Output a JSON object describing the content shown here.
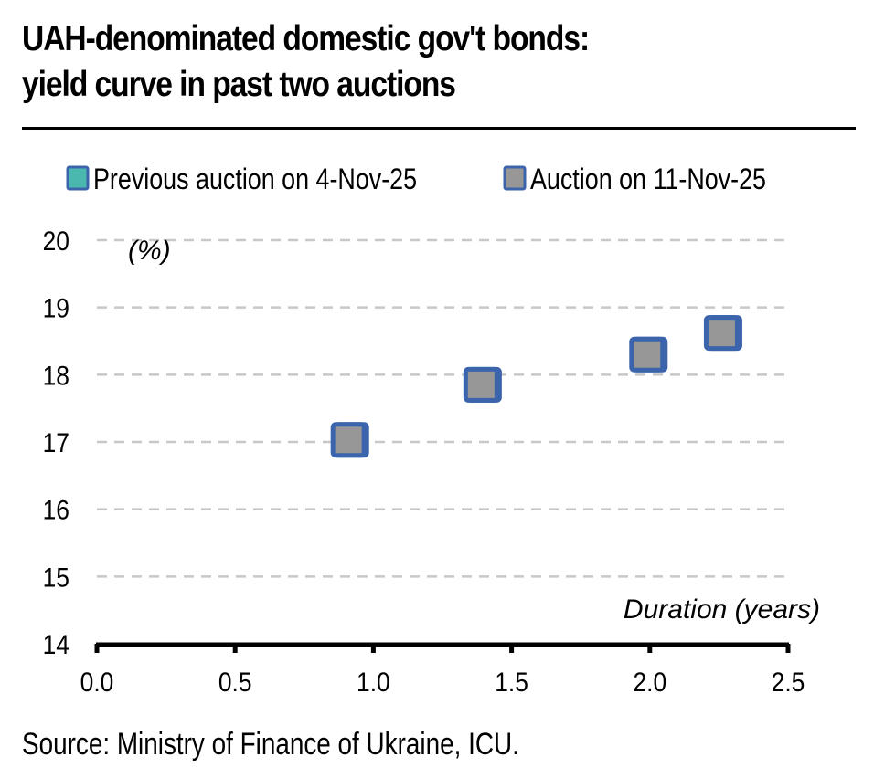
{
  "title_lines": [
    "UAH-denominated domestic gov't bonds:",
    "yield curve in past two auctions"
  ],
  "source": "Source: Ministry of Finance of Ukraine, ICU.",
  "chart_data": {
    "type": "scatter",
    "title": "UAH-denominated domestic gov't bonds: yield curve in past two auctions",
    "xlabel": "Duration (years)",
    "ylabel": "(%)",
    "xlim": [
      0.0,
      2.5
    ],
    "ylim": [
      14,
      20
    ],
    "x_ticks": [
      "0.0",
      "0.5",
      "1.0",
      "1.5",
      "2.0",
      "2.5"
    ],
    "y_ticks": [
      "14",
      "15",
      "16",
      "17",
      "18",
      "19",
      "20"
    ],
    "grid": "horizontal dashed",
    "legend_position": "top",
    "series": [
      {
        "name": "Previous auction on 4-Nov-25",
        "fill": "#4bb8b0",
        "border": "#3c64ac",
        "points": [
          {
            "x": 0.92,
            "y": 17.03
          },
          {
            "x": 1.4,
            "y": 17.85
          },
          {
            "x": 2.0,
            "y": 18.3
          },
          {
            "x": 2.27,
            "y": 18.62
          }
        ]
      },
      {
        "name": "Auction on 11-Nov-25",
        "fill": "#979797",
        "border": "#3c64ac",
        "points": [
          {
            "x": 0.91,
            "y": 17.03
          },
          {
            "x": 1.39,
            "y": 17.85
          },
          {
            "x": 1.99,
            "y": 18.3
          },
          {
            "x": 2.26,
            "y": 18.62
          }
        ]
      }
    ]
  }
}
